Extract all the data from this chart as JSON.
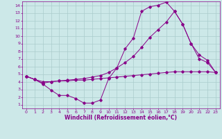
{
  "xlabel": "Windchill (Refroidissement éolien,°C)",
  "bg_color": "#cce8e8",
  "grid_color": "#aacccc",
  "line_color": "#880088",
  "xlim": [
    -0.5,
    23.5
  ],
  "ylim": [
    0.5,
    14.5
  ],
  "xticks": [
    0,
    1,
    2,
    3,
    4,
    5,
    6,
    7,
    8,
    9,
    10,
    11,
    12,
    13,
    14,
    15,
    16,
    17,
    18,
    19,
    20,
    21,
    22,
    23
  ],
  "yticks": [
    1,
    2,
    3,
    4,
    5,
    6,
    7,
    8,
    9,
    10,
    11,
    12,
    13,
    14
  ],
  "line1_x": [
    0,
    1,
    2,
    3,
    4,
    5,
    6,
    7,
    8,
    9,
    10,
    11,
    12,
    13,
    14,
    15,
    16,
    17,
    18,
    19,
    20,
    21,
    22,
    23
  ],
  "line1_y": [
    4.7,
    4.3,
    3.7,
    2.9,
    2.2,
    2.2,
    1.8,
    1.2,
    1.2,
    1.6,
    4.4,
    5.8,
    8.3,
    9.7,
    13.2,
    13.8,
    14.0,
    14.4,
    13.2,
    11.5,
    9.0,
    7.0,
    6.5,
    5.2
  ],
  "line2_x": [
    0,
    1,
    2,
    3,
    4,
    5,
    6,
    7,
    8,
    9,
    10,
    11,
    12,
    13,
    14,
    15,
    16,
    17,
    18,
    19,
    20,
    21,
    22,
    23
  ],
  "line2_y": [
    4.7,
    4.3,
    3.8,
    4.0,
    4.1,
    4.2,
    4.3,
    4.4,
    4.6,
    4.8,
    5.2,
    5.8,
    6.5,
    7.3,
    8.5,
    9.8,
    10.8,
    11.8,
    13.2,
    11.5,
    9.0,
    7.5,
    6.8,
    5.2
  ],
  "line3_x": [
    0,
    1,
    2,
    3,
    4,
    5,
    6,
    7,
    8,
    9,
    10,
    11,
    12,
    13,
    14,
    15,
    16,
    17,
    18,
    19,
    20,
    21,
    22,
    23
  ],
  "line3_y": [
    4.7,
    4.3,
    4.0,
    4.0,
    4.1,
    4.1,
    4.2,
    4.2,
    4.3,
    4.4,
    4.5,
    4.6,
    4.7,
    4.8,
    4.9,
    5.0,
    5.1,
    5.2,
    5.3,
    5.3,
    5.3,
    5.3,
    5.3,
    5.2
  ],
  "tick_fontsize": 4.5,
  "xlabel_fontsize": 5.5,
  "marker_size": 1.8,
  "line_width": 0.7
}
